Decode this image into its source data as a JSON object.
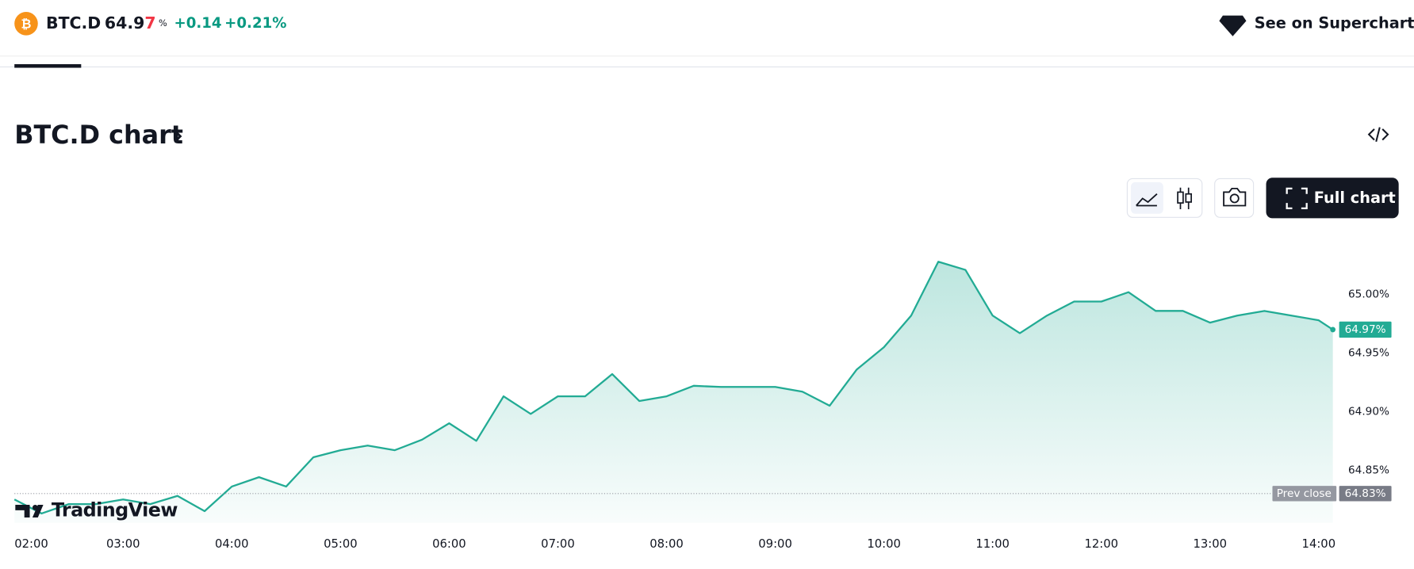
{
  "header": {
    "symbol": "BTC.D",
    "price_digits": "64.9",
    "price_last_digit": "7",
    "price_unit": "%",
    "change": "+0.14",
    "change_pct": "+0.21%",
    "link": "See on Supercharts"
  },
  "section": {
    "title": "BTC.D chart",
    "full_chart": "Full chart"
  },
  "logo": "TradingView",
  "chart_data": {
    "type": "line",
    "x": [
      2.0,
      2.25,
      2.5,
      2.75,
      3.0,
      3.25,
      3.5,
      3.75,
      4.0,
      4.25,
      4.5,
      4.75,
      5.0,
      5.25,
      5.5,
      5.75,
      6.0,
      6.25,
      6.5,
      6.75,
      7.0,
      7.25,
      7.5,
      7.75,
      8.0,
      8.25,
      8.5,
      8.75,
      9.0,
      9.25,
      9.5,
      9.75,
      10.0,
      10.25,
      10.5,
      10.75,
      11.0,
      11.25,
      11.5,
      11.75,
      12.0,
      12.25,
      12.5,
      12.75,
      13.0,
      13.25,
      13.5,
      13.75,
      14.0,
      14.13
    ],
    "series": [
      {
        "name": "BTC.D",
        "color": "#22ab94",
        "values": [
          64.825,
          64.813,
          64.821,
          64.821,
          64.825,
          64.821,
          64.828,
          64.815,
          64.836,
          64.844,
          64.836,
          64.861,
          64.867,
          64.871,
          64.867,
          64.876,
          64.89,
          64.875,
          64.913,
          64.898,
          64.913,
          64.913,
          64.932,
          64.909,
          64.913,
          64.922,
          64.921,
          64.921,
          64.921,
          64.917,
          64.905,
          64.936,
          64.955,
          64.982,
          65.028,
          65.021,
          64.982,
          64.967,
          64.982,
          64.994,
          64.994,
          65.002,
          64.986,
          64.986,
          64.976,
          64.982,
          64.986,
          64.982,
          64.978,
          64.97
        ]
      }
    ],
    "xlim": [
      2.0,
      14.13
    ],
    "xticks": [
      {
        "value": 2,
        "label": "02:00"
      },
      {
        "value": 3,
        "label": "03:00"
      },
      {
        "value": 4,
        "label": "04:00"
      },
      {
        "value": 5,
        "label": "05:00"
      },
      {
        "value": 6,
        "label": "06:00"
      },
      {
        "value": 7,
        "label": "07:00"
      },
      {
        "value": 8,
        "label": "08:00"
      },
      {
        "value": 9,
        "label": "09:00"
      },
      {
        "value": 10,
        "label": "10:00"
      },
      {
        "value": 11,
        "label": "11:00"
      },
      {
        "value": 12,
        "label": "12:00"
      },
      {
        "value": 13,
        "label": "13:00"
      },
      {
        "value": 14,
        "label": "14:00"
      }
    ],
    "ylim": [
      64.805,
      65.06
    ],
    "yticks": [
      {
        "value": 64.85,
        "label": "64.85%"
      },
      {
        "value": 64.9,
        "label": "64.90%"
      },
      {
        "value": 64.95,
        "label": "64.95%"
      },
      {
        "value": 65.0,
        "label": "65.00%"
      }
    ],
    "last_price": {
      "value": 64.97,
      "label": "64.97%"
    },
    "markers": [
      {
        "name": "Prev close",
        "value": 64.83,
        "label": "64.83%"
      }
    ],
    "grid": false
  }
}
